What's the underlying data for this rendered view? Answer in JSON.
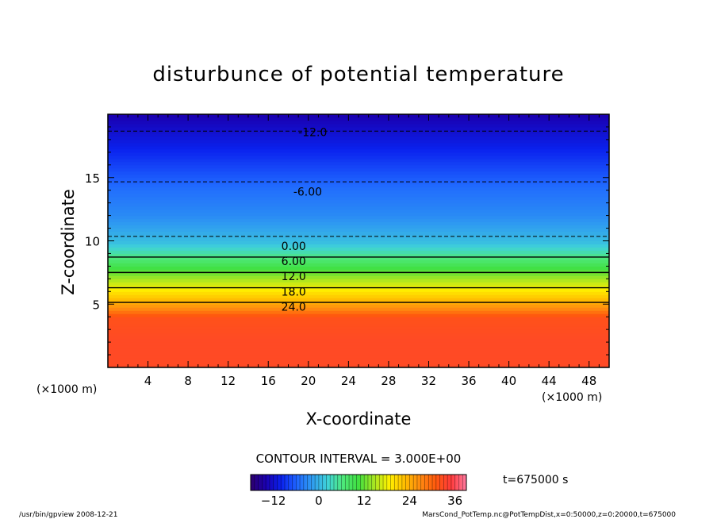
{
  "chart_data": {
    "type": "heatmap",
    "title": "disturbunce of potential temperature",
    "xlabel": "X-coordinate",
    "ylabel": "Z-coordinate",
    "x_unit": "(×1000 m)",
    "y_unit": "(×1000 m)",
    "xlim": [
      0,
      50
    ],
    "ylim": [
      0,
      20
    ],
    "x_ticks": [
      4,
      8,
      12,
      16,
      20,
      24,
      28,
      32,
      36,
      40,
      44,
      48
    ],
    "y_ticks": [
      5,
      10,
      15
    ],
    "z_profile": [
      {
        "z": 0,
        "value": 33
      },
      {
        "z": 2,
        "value": 33
      },
      {
        "z": 4,
        "value": 32
      },
      {
        "z": 4.6,
        "value": 27
      },
      {
        "z": 5.5,
        "value": 22
      },
      {
        "z": 6.5,
        "value": 17
      },
      {
        "z": 7.5,
        "value": 12
      },
      {
        "z": 8.5,
        "value": 7
      },
      {
        "z": 9.8,
        "value": 1
      },
      {
        "z": 12,
        "value": -3
      },
      {
        "z": 14,
        "value": -5
      },
      {
        "z": 16,
        "value": -8
      },
      {
        "z": 18,
        "value": -11
      },
      {
        "z": 20,
        "value": -14
      }
    ],
    "contours": [
      {
        "label": "-12.0",
        "value": -12,
        "style": "dashed",
        "label_x": 19.0,
        "label_z": 18.6
      },
      {
        "label": "-6.00",
        "value": -6,
        "style": "dashed",
        "label_x": 18.5,
        "label_z": 13.9
      },
      {
        "label": "0.00",
        "value": 0,
        "style": "dashed",
        "label_x": 17.3,
        "label_z": 9.6
      },
      {
        "label": "6.00",
        "value": 6,
        "style": "solid",
        "label_x": 17.3,
        "label_z": 8.4
      },
      {
        "label": "12.0",
        "value": 12,
        "style": "solid",
        "label_x": 17.3,
        "label_z": 7.2
      },
      {
        "label": "18.0",
        "value": 18,
        "style": "solid",
        "label_x": 17.3,
        "label_z": 6.0
      },
      {
        "label": "24.0",
        "value": 24,
        "style": "solid",
        "label_x": 17.3,
        "label_z": 4.8
      }
    ],
    "contour_interval": "CONTOUR INTERVAL = 3.000E+00",
    "colorbar": {
      "min": -18,
      "max": 39,
      "ticks": [
        -12,
        0,
        12,
        24,
        36
      ]
    }
  },
  "time_label": "t=675000 s",
  "footer_left": "/usr/bin/gpview   2008-12-21",
  "footer_right": "MarsCond_PotTemp.nc@PotTempDist,x=0:50000,z=0:20000,t=675000",
  "colors": {
    "palette": [
      "#2e006e",
      "#1a00b0",
      "#0a22ee",
      "#1f66ff",
      "#2f9cf0",
      "#3fd3d8",
      "#4ee87a",
      "#40e040",
      "#a6e622",
      "#fff000",
      "#ffbd00",
      "#ff8a10",
      "#ff5a0d",
      "#ff3b3b",
      "#ff7aa0"
    ]
  }
}
